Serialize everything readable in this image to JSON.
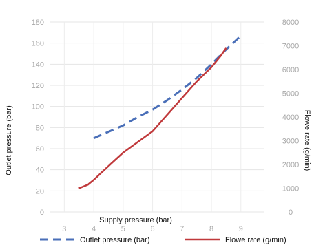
{
  "chart_data": {
    "type": "line",
    "title": "",
    "xlabel": "Supply pressure (bar)",
    "ylabel": "Outlet pressure (bar)",
    "y2label": "Flowe rate (g/min)",
    "xlim": [
      2.5,
      9.8
    ],
    "ylim": [
      0,
      180
    ],
    "y2lim": [
      0,
      8000
    ],
    "x_ticks": [
      "3",
      "4",
      "5",
      "6",
      "7",
      "8",
      "9"
    ],
    "y_ticks": [
      "0",
      "20",
      "40",
      "60",
      "80",
      "100",
      "120",
      "140",
      "160",
      "180"
    ],
    "y2_ticks": [
      "0",
      "1000",
      "2000",
      "3000",
      "4000",
      "5000",
      "6000",
      "7000",
      "8000"
    ],
    "grid": true,
    "legend_position": "bottom",
    "series": [
      {
        "name": "Outlet pressure (bar)",
        "axis": "left",
        "color": "#4a6fb8",
        "style": "dashed",
        "x": [
          4.0,
          4.5,
          5.0,
          5.5,
          6.0,
          6.5,
          7.0,
          7.5,
          8.0,
          8.5,
          9.0
        ],
        "y": [
          70,
          76,
          82,
          90,
          97,
          106,
          116,
          127,
          140,
          154,
          167
        ]
      },
      {
        "name": "Flowe rate (g/min)",
        "axis": "right",
        "color": "#c0393b",
        "style": "solid",
        "x": [
          3.5,
          3.8,
          4.0,
          4.3,
          4.6,
          5.0,
          5.5,
          6.0,
          6.5,
          7.0,
          7.5,
          8.0,
          8.3,
          8.5
        ],
        "y": [
          1000,
          1150,
          1350,
          1700,
          2050,
          2500,
          2950,
          3400,
          4100,
          4800,
          5500,
          6100,
          6550,
          6900
        ]
      }
    ]
  }
}
